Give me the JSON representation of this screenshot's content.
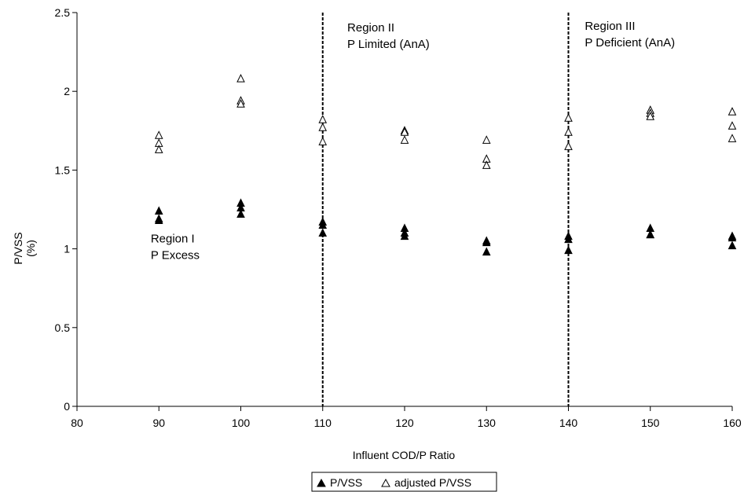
{
  "chart_data": {
    "type": "scatter",
    "xlabel": "Influent COD/P Ratio",
    "ylabel": "P/VSS",
    "ylabel_unit": "(%)",
    "xlim": [
      80,
      160
    ],
    "ylim": [
      0,
      2.5
    ],
    "x_ticks": [
      "80",
      "90",
      "100",
      "110",
      "120",
      "130",
      "140",
      "150",
      "160"
    ],
    "y_ticks": [
      "0",
      "0.5",
      "1",
      "1.5",
      "2",
      "2.5"
    ],
    "grid": false,
    "legend_position": "bottom-center",
    "series": [
      {
        "name": "P/VSS",
        "marker": "filled-triangle",
        "color": "#000000",
        "points": [
          [
            90,
            1.24
          ],
          [
            90,
            1.19
          ],
          [
            90,
            1.18
          ],
          [
            100,
            1.29
          ],
          [
            100,
            1.26
          ],
          [
            100,
            1.22
          ],
          [
            110,
            1.17
          ],
          [
            110,
            1.15
          ],
          [
            110,
            1.1
          ],
          [
            120,
            1.13
          ],
          [
            120,
            1.1
          ],
          [
            120,
            1.08
          ],
          [
            130,
            1.05
          ],
          [
            130,
            1.04
          ],
          [
            130,
            0.98
          ],
          [
            140,
            1.08
          ],
          [
            140,
            1.06
          ],
          [
            140,
            0.99
          ],
          [
            150,
            1.13
          ],
          [
            150,
            1.09
          ],
          [
            150,
            1.09
          ],
          [
            160,
            1.08
          ],
          [
            160,
            1.07
          ],
          [
            160,
            1.02
          ]
        ]
      },
      {
        "name": "adjusted P/VSS",
        "marker": "open-triangle",
        "color": "#000000",
        "points": [
          [
            90,
            1.72
          ],
          [
            90,
            1.67
          ],
          [
            90,
            1.63
          ],
          [
            100,
            2.08
          ],
          [
            100,
            1.94
          ],
          [
            100,
            1.92
          ],
          [
            110,
            1.82
          ],
          [
            110,
            1.77
          ],
          [
            110,
            1.68
          ],
          [
            120,
            1.75
          ],
          [
            120,
            1.74
          ],
          [
            120,
            1.69
          ],
          [
            130,
            1.69
          ],
          [
            130,
            1.57
          ],
          [
            130,
            1.53
          ],
          [
            140,
            1.83
          ],
          [
            140,
            1.74
          ],
          [
            140,
            1.65
          ],
          [
            150,
            1.88
          ],
          [
            150,
            1.86
          ],
          [
            150,
            1.84
          ],
          [
            160,
            1.87
          ],
          [
            160,
            1.78
          ],
          [
            160,
            1.7
          ]
        ]
      }
    ],
    "dividers": [
      110,
      140
    ],
    "annotations": [
      {
        "lines": [
          "Region I",
          "P Excess"
        ],
        "x": 89,
        "y": 1.04
      },
      {
        "lines": [
          "Region II",
          "P Limited (AnA)"
        ],
        "x": 113,
        "y": 2.38
      },
      {
        "lines": [
          "Region III",
          "P Deficient (AnA)"
        ],
        "x": 142,
        "y": 2.39
      }
    ]
  }
}
